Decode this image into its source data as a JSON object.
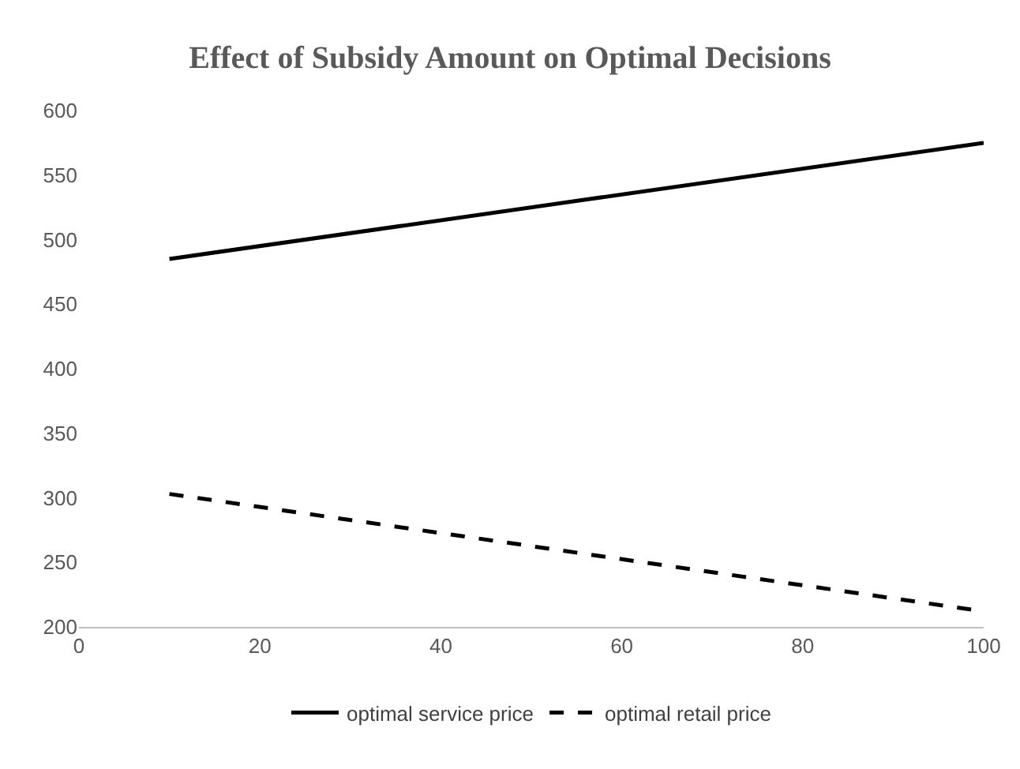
{
  "chart_data": {
    "type": "line",
    "title": "Effect of Subsidy Amount on Optimal Decisions",
    "x": [
      10,
      100
    ],
    "series": [
      {
        "name": "optimal service price",
        "color": "#000000",
        "values": [
          485,
          575
        ],
        "line_style": "solid"
      },
      {
        "name": "optimal retail price",
        "color": "#000000",
        "values": [
          303,
          212
        ],
        "line_style": "dashed"
      }
    ],
    "xlim": [
      0,
      100
    ],
    "xticks": [
      0,
      20,
      40,
      60,
      80,
      100
    ],
    "ylim": [
      200,
      600
    ],
    "yticks": [
      200,
      250,
      300,
      350,
      400,
      450,
      500,
      550,
      600
    ],
    "grid": false,
    "legend": "bottom",
    "marker": "none"
  }
}
